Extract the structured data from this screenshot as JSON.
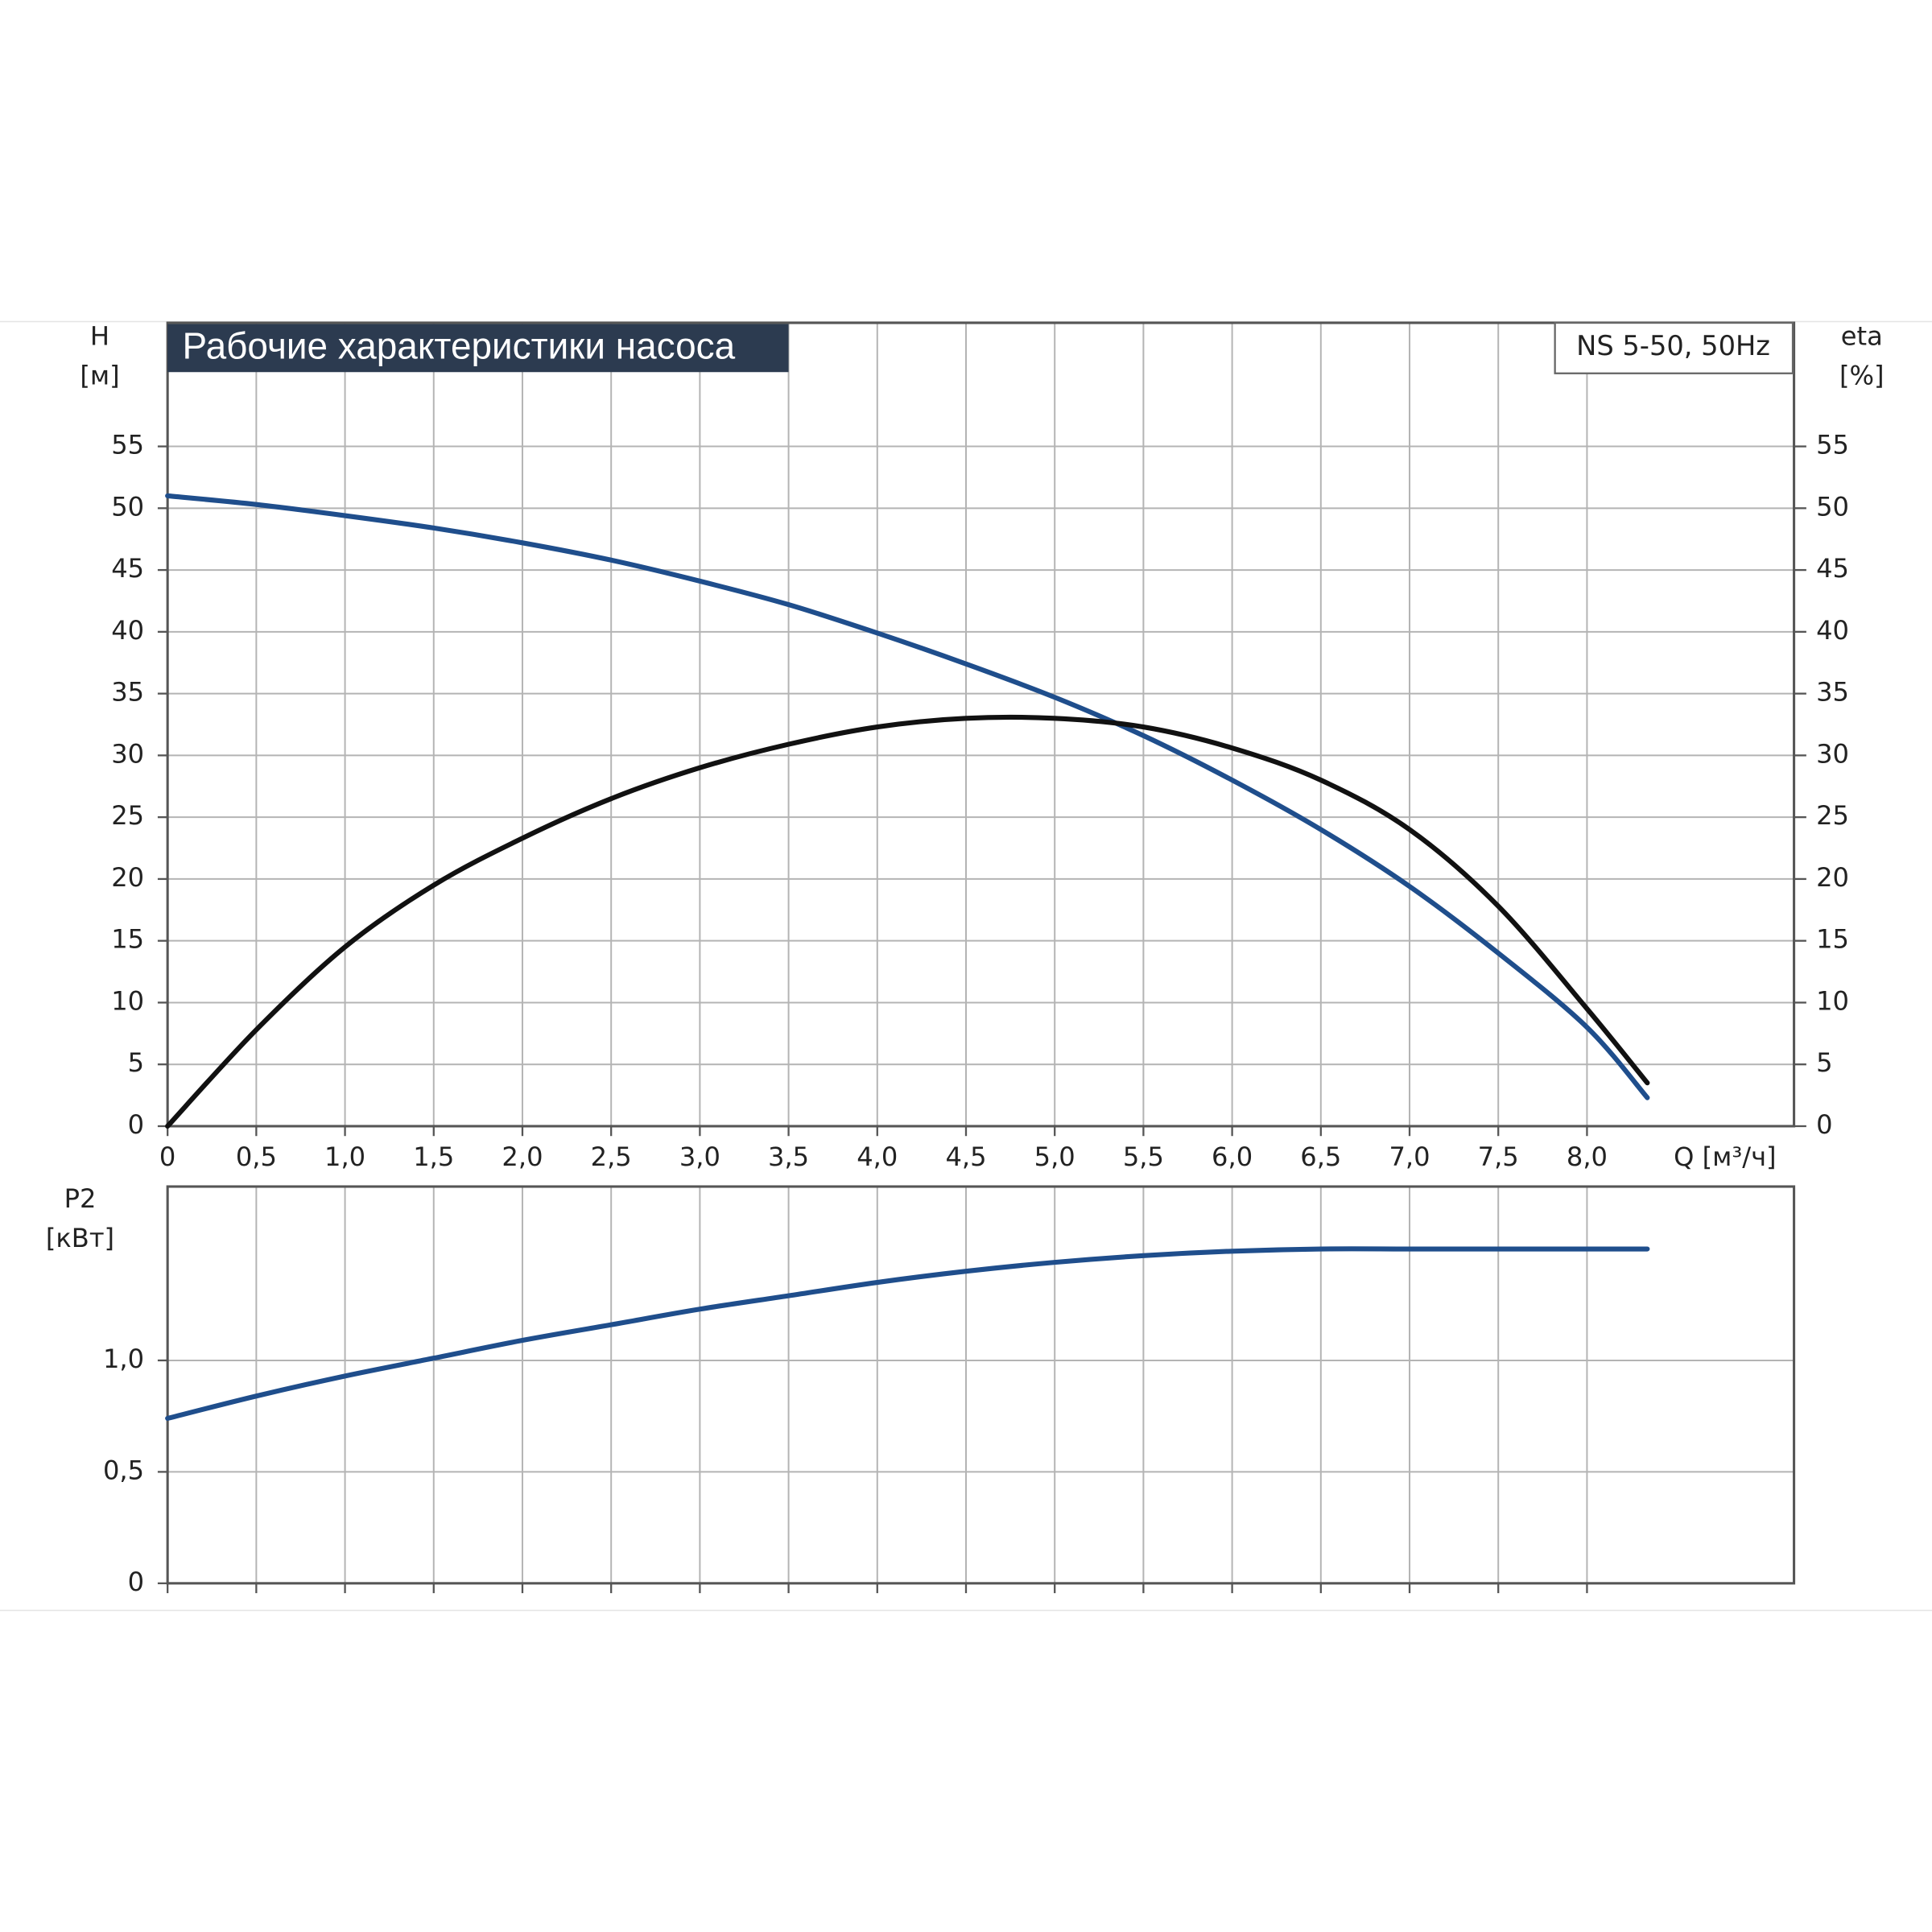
{
  "chart_data": [
    {
      "type": "line",
      "title": "Рабочие характеристики насоса",
      "legend_label": "NS 5-50, 50Hz",
      "xlabel": "Q [м³/ч]",
      "ylabel": "H",
      "yunit": "[м]",
      "y2label": "eta",
      "y2unit": "[%]",
      "x": [
        0,
        0.5,
        1.0,
        1.5,
        2.0,
        2.5,
        3.0,
        3.5,
        4.0,
        4.5,
        5.0,
        5.5,
        6.0,
        6.5,
        7.0,
        7.5,
        8.0,
        8.34
      ],
      "xlim": [
        0,
        9.1667
      ],
      "xticks": [
        0,
        {
          "value": 0.5,
          "label": "0,5"
        },
        {
          "value": 1.0,
          "label": "1,0"
        },
        {
          "value": 1.5,
          "label": "1,5"
        },
        {
          "value": 2.0,
          "label": "2,0"
        },
        {
          "value": 2.5,
          "label": "2,5"
        },
        {
          "value": 3.0,
          "label": "3,0"
        },
        {
          "value": 3.5,
          "label": "3,5"
        },
        {
          "value": 4.0,
          "label": "4,0"
        },
        {
          "value": 4.5,
          "label": "4,5"
        },
        {
          "value": 5.0,
          "label": "5,0"
        },
        {
          "value": 5.5,
          "label": "5,5"
        },
        {
          "value": 6.0,
          "label": "6,0"
        },
        {
          "value": 6.5,
          "label": "6,5"
        },
        {
          "value": 7.0,
          "label": "7,0"
        },
        {
          "value": 7.5,
          "label": "7,5"
        },
        {
          "value": 8.0,
          "label": "8,0"
        }
      ],
      "ylim": [
        0,
        65
      ],
      "yticks": [
        0,
        5,
        10,
        15,
        20,
        25,
        30,
        35,
        40,
        45,
        50,
        55
      ],
      "y2lim": [
        0,
        65
      ],
      "y2ticks": [
        0,
        5,
        10,
        15,
        20,
        25,
        30,
        35,
        40,
        45,
        50,
        55
      ],
      "grid": true,
      "series": [
        {
          "color": "#1f4e8c",
          "values": [
            51,
            50.3,
            49.4,
            48.4,
            47.2,
            45.8,
            44.1,
            42.2,
            39.9,
            37.4,
            34.7,
            31.6,
            28.0,
            24.0,
            19.4,
            14.0,
            8.0,
            2.3
          ]
        },
        {
          "color": "#111111",
          "axis": "y2",
          "values": [
            0,
            7.8,
            14.5,
            19.5,
            23.3,
            26.5,
            29.0,
            30.9,
            32.3,
            33.0,
            33.0,
            32.3,
            30.6,
            28.0,
            24.0,
            17.8,
            9.5,
            3.5
          ]
        }
      ]
    },
    {
      "type": "line",
      "ylabel": "P2",
      "yunit": "[кВт]",
      "x": [
        0,
        0.5,
        1.0,
        1.5,
        2.0,
        2.5,
        3.0,
        3.5,
        4.0,
        4.5,
        5.0,
        5.5,
        6.0,
        6.5,
        7.0,
        7.5,
        8.0,
        8.34
      ],
      "xlim": [
        0,
        9.1667
      ],
      "ylim": [
        0,
        1.78
      ],
      "yticks": [
        0,
        {
          "value": 0.5,
          "label": "0,5"
        },
        {
          "value": 1.0,
          "label": "1,0"
        }
      ],
      "grid": true,
      "series": [
        {
          "color": "#1f4e8c",
          "values": [
            0.74,
            0.84,
            0.93,
            1.01,
            1.09,
            1.16,
            1.23,
            1.29,
            1.35,
            1.4,
            1.44,
            1.47,
            1.49,
            1.5,
            1.5,
            1.5,
            1.5,
            1.5
          ]
        }
      ]
    }
  ]
}
